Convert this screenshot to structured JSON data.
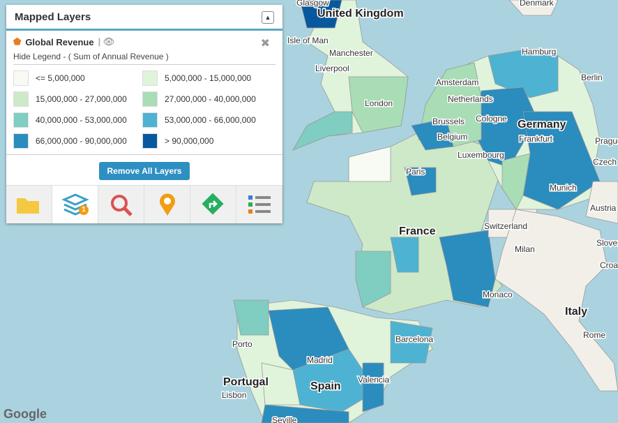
{
  "panel": {
    "title": "Mapped Layers",
    "layer": {
      "name": "Global Revenue",
      "legend_toggle": "Hide Legend - ( Sum of Annual Revenue )",
      "legend": [
        {
          "label": "<= 5,000,000",
          "color": "#f7fbf4"
        },
        {
          "label": "5,000,000 - 15,000,000",
          "color": "#e0f3db"
        },
        {
          "label": "15,000,000 - 27,000,000",
          "color": "#cde9c8"
        },
        {
          "label": "27,000,000 - 40,000,000",
          "color": "#a8ddb5"
        },
        {
          "label": "40,000,000 - 53,000,000",
          "color": "#80cdc1"
        },
        {
          "label": "53,000,000 - 66,000,000",
          "color": "#4eb3d3"
        },
        {
          "label": "66,000,000 - 90,000,000",
          "color": "#2b8cbe"
        },
        {
          "label": "> 90,000,000",
          "color": "#08589e"
        }
      ]
    },
    "button": "Remove All Layers",
    "layer_count": "1"
  },
  "map": {
    "attribution": "Google",
    "labels": [
      "Denmark",
      "Glasgow",
      "United Kingdom",
      "Isle of Man",
      "Manchester",
      "Liverpool",
      "London",
      "Amsterdam",
      "Netherlands",
      "Hamburg",
      "Berlin",
      "Brussels",
      "Belgium",
      "Cologne",
      "Germany",
      "Frankfurt",
      "Luxembourg",
      "Prague",
      "Czech",
      "Paris",
      "France",
      "Munich",
      "Austria",
      "Switzerland",
      "Milan",
      "Sloven",
      "Croa",
      "Monaco",
      "Italy",
      "Rome",
      "Barcelona",
      "Porto",
      "Portugal",
      "Lisbon",
      "Madrid",
      "Spain",
      "Valencia",
      "Seville"
    ]
  }
}
